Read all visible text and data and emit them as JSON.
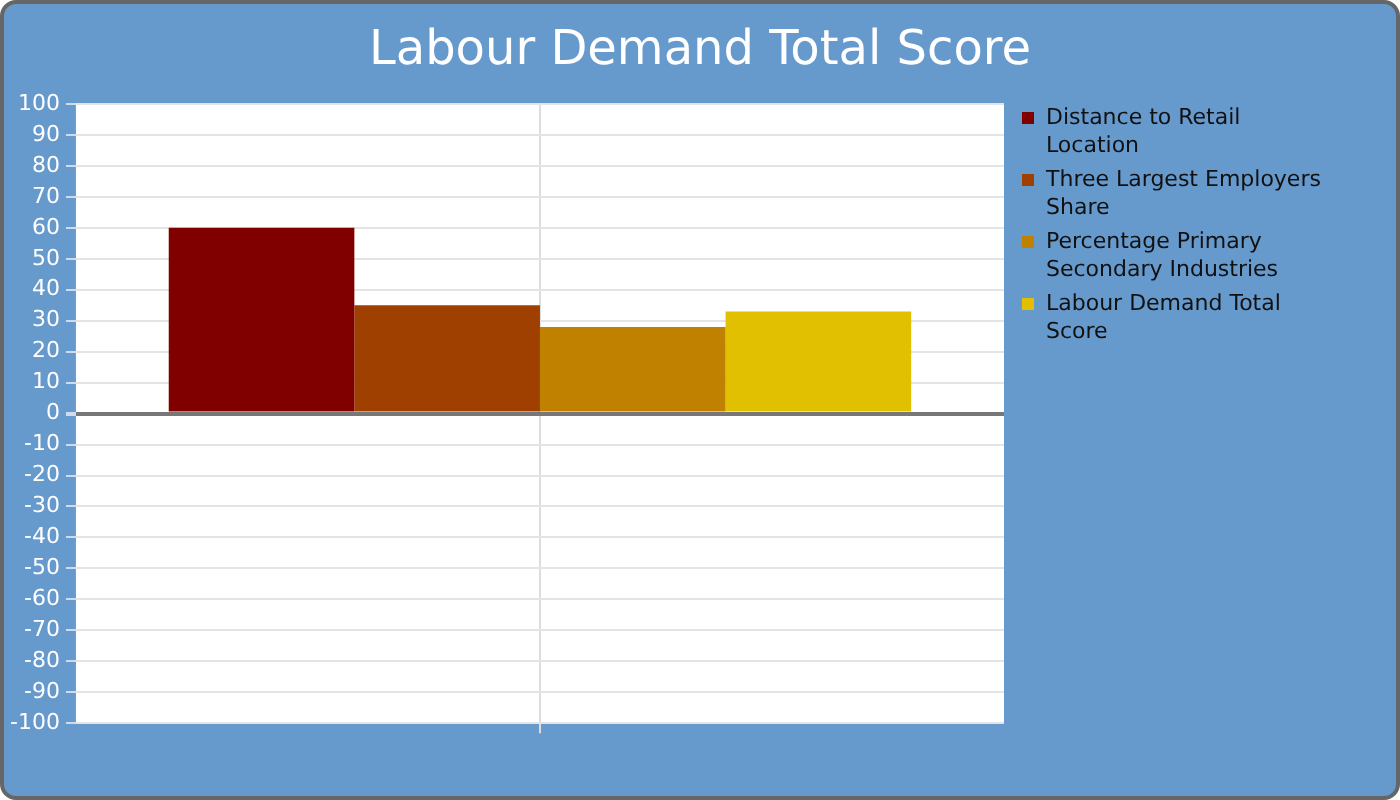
{
  "chart_data": {
    "type": "bar",
    "title": "Labour Demand Total Score",
    "categories": [
      null
    ],
    "series": [
      {
        "name": "Distance to Retail Location",
        "color": "#800000",
        "values": [
          60
        ]
      },
      {
        "name": "Three Largest Employers Share",
        "color": "#a04000",
        "values": [
          35
        ]
      },
      {
        "name": "Percentage Primary Secondary Industries",
        "color": "#c08000",
        "values": [
          28
        ]
      },
      {
        "name": "Labour Demand Total Score",
        "color": "#e0c000",
        "values": [
          33
        ]
      }
    ],
    "ylim": [
      -100,
      100
    ],
    "yticks": [
      -100,
      -90,
      -80,
      -70,
      -60,
      -50,
      -40,
      -30,
      -20,
      -10,
      0,
      10,
      20,
      30,
      40,
      50,
      60,
      70,
      80,
      90,
      100
    ],
    "grid": true,
    "legend": "right"
  }
}
